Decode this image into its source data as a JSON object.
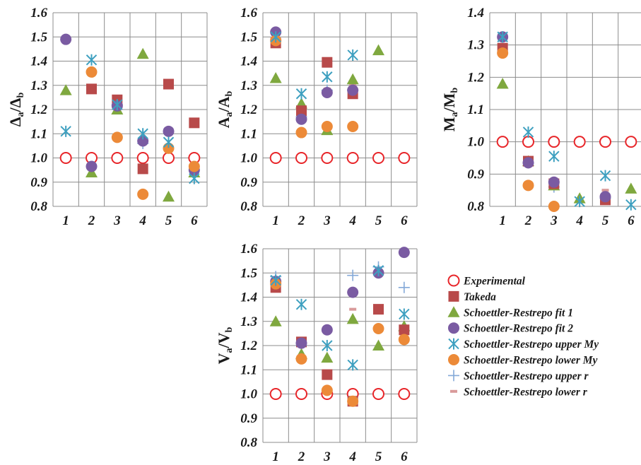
{
  "colors": {
    "Experimental": "#e8262a",
    "Takeda": "#b84a4a",
    "Schoettler-Restrepo fit 1": "#7fa83f",
    "Schoettler-Restrepo fit 2": "#7a5ba2",
    "Schoettler-Restrepo upper My": "#3ea0c0",
    "Schoettler-Restrepo lower My": "#ec8a38",
    "Schoettler-Restrepo upper r": "#84a9d8",
    "Schoettler-Restrepo lower r": "#d99a9a"
  },
  "markers": {
    "Experimental": "circle-open",
    "Takeda": "square",
    "Schoettler-Restrepo fit 1": "triangle",
    "Schoettler-Restrepo fit 2": "circle",
    "Schoettler-Restrepo upper My": "star",
    "Schoettler-Restrepo lower My": "circle",
    "Schoettler-Restrepo upper r": "plus",
    "Schoettler-Restrepo lower r": "dash"
  },
  "legend": {
    "placement": "right",
    "entries": [
      "Experimental",
      "Takeda",
      "Schoettler-Restrepo fit 1",
      "Schoettler-Restrepo fit 2",
      "Schoettler-Restrepo upper My",
      "Schoettler-Restrepo lower My",
      "Schoettler-Restrepo upper r",
      "Schoettler-Restrepo lower r"
    ]
  },
  "chart_data": [
    {
      "type": "scatter",
      "ylabel": {
        "main": "Δ",
        "sub": "a",
        "mid": "/Δ",
        "sub2": "b"
      },
      "ylim": [
        0.8,
        1.6
      ],
      "yticks": [
        "0.8",
        "0.9",
        "1.0",
        "1.1",
        "1.2",
        "1.3",
        "1.4",
        "1.5",
        "1.6"
      ],
      "xticks": [
        "1",
        "2",
        "3",
        "4",
        "5",
        "6"
      ],
      "grid": true,
      "series": [
        {
          "name": "Experimental",
          "values": [
            1.0,
            1.0,
            1.0,
            1.0,
            1.0,
            1.0
          ]
        },
        {
          "name": "Takeda",
          "values": [
            null,
            1.285,
            1.24,
            0.955,
            1.305,
            1.145
          ]
        },
        {
          "name": "Schoettler-Restrepo fit 1",
          "values": [
            1.28,
            0.94,
            1.2,
            1.43,
            0.84,
            0.94
          ]
        },
        {
          "name": "Schoettler-Restrepo fit 2",
          "values": [
            1.49,
            0.965,
            1.215,
            1.07,
            1.11,
            0.95
          ]
        },
        {
          "name": "Schoettler-Restrepo upper My",
          "values": [
            1.11,
            1.405,
            1.22,
            1.1,
            1.065,
            0.915
          ]
        },
        {
          "name": "Schoettler-Restrepo lower My",
          "values": [
            null,
            1.355,
            1.085,
            0.85,
            1.04,
            0.965
          ]
        },
        {
          "name": "Schoettler-Restrepo upper r",
          "values": [
            null,
            null,
            1.22,
            1.06,
            null,
            null
          ]
        },
        {
          "name": "Schoettler-Restrepo lower r",
          "values": [
            null,
            null,
            1.225,
            1.065,
            1.12,
            null
          ]
        }
      ]
    },
    {
      "type": "scatter",
      "ylabel": {
        "main": "A",
        "sub": "a",
        "mid": "/A",
        "sub2": "b"
      },
      "ylim": [
        0.8,
        1.6
      ],
      "yticks": [
        "0.8",
        "0.9",
        "1.0",
        "1.1",
        "1.2",
        "1.3",
        "1.4",
        "1.5",
        "1.6"
      ],
      "xticks": [
        "1",
        "2",
        "3",
        "4",
        "5",
        "6"
      ],
      "grid": true,
      "series": [
        {
          "name": "Experimental",
          "values": [
            1.0,
            1.0,
            1.0,
            1.0,
            1.0,
            1.0
          ]
        },
        {
          "name": "Takeda",
          "values": [
            1.475,
            1.195,
            1.395,
            1.265,
            null,
            null
          ]
        },
        {
          "name": "Schoettler-Restrepo fit 1",
          "values": [
            1.33,
            1.225,
            1.115,
            1.325,
            1.445,
            null
          ]
        },
        {
          "name": "Schoettler-Restrepo fit 2",
          "values": [
            1.52,
            1.16,
            1.27,
            1.28,
            null,
            null
          ]
        },
        {
          "name": "Schoettler-Restrepo upper My",
          "values": [
            1.5,
            1.265,
            1.335,
            1.425,
            null,
            null
          ]
        },
        {
          "name": "Schoettler-Restrepo lower My",
          "values": [
            1.485,
            1.105,
            1.13,
            1.13,
            null,
            null
          ]
        },
        {
          "name": "Schoettler-Restrepo upper r",
          "values": [
            null,
            1.17,
            1.28,
            1.28,
            null,
            null
          ]
        },
        {
          "name": "Schoettler-Restrepo lower r",
          "values": [
            null,
            null,
            1.285,
            1.3,
            null,
            null
          ]
        }
      ]
    },
    {
      "type": "scatter",
      "ylabel": {
        "main": "M",
        "sub": "a",
        "mid": "/M",
        "sub2": "b"
      },
      "ylim": [
        0.8,
        1.4
      ],
      "yticks": [
        "0.8",
        "0.9",
        "1.0",
        "1.1",
        "1.2",
        "1.3",
        "1.4"
      ],
      "xticks": [
        "1",
        "2",
        "3",
        "4",
        "5",
        "6"
      ],
      "grid": true,
      "series": [
        {
          "name": "Experimental",
          "values": [
            1.0,
            1.0,
            1.0,
            1.0,
            1.0,
            1.0
          ]
        },
        {
          "name": "Takeda",
          "values": [
            1.29,
            0.94,
            0.87,
            null,
            0.82,
            null
          ]
        },
        {
          "name": "Schoettler-Restrepo fit 1",
          "values": [
            1.18,
            0.94,
            0.865,
            0.825,
            null,
            0.855
          ]
        },
        {
          "name": "Schoettler-Restrepo fit 2",
          "values": [
            1.325,
            0.935,
            0.875,
            null,
            0.83,
            null
          ]
        },
        {
          "name": "Schoettler-Restrepo upper My",
          "values": [
            1.325,
            1.03,
            0.955,
            0.815,
            0.895,
            0.805
          ]
        },
        {
          "name": "Schoettler-Restrepo lower My",
          "values": [
            1.275,
            0.865,
            0.8,
            null,
            null,
            null
          ]
        },
        {
          "name": "Schoettler-Restrepo upper r",
          "values": [
            null,
            0.935,
            0.86,
            null,
            0.825,
            null
          ]
        },
        {
          "name": "Schoettler-Restrepo lower r",
          "values": [
            null,
            null,
            0.885,
            null,
            0.85,
            null
          ]
        }
      ]
    },
    {
      "type": "scatter",
      "ylabel": {
        "main": "V",
        "sub": "a",
        "mid": "/V",
        "sub2": "b"
      },
      "ylim": [
        0.8,
        1.6
      ],
      "yticks": [
        "0.8",
        "0.9",
        "1.0",
        "1.1",
        "1.2",
        "1.3",
        "1.4",
        "1.5",
        "1.6"
      ],
      "xticks": [
        "1",
        "2",
        "3",
        "4",
        "5",
        "6"
      ],
      "grid": true,
      "series": [
        {
          "name": "Experimental",
          "values": [
            1.0,
            1.0,
            1.0,
            1.0,
            1.0,
            1.0
          ]
        },
        {
          "name": "Takeda",
          "values": [
            1.44,
            1.215,
            1.08,
            0.97,
            1.35,
            1.265
          ]
        },
        {
          "name": "Schoettler-Restrepo fit 1",
          "values": [
            1.3,
            1.165,
            1.15,
            1.31,
            1.2,
            1.28
          ]
        },
        {
          "name": "Schoettler-Restrepo fit 2",
          "values": [
            1.465,
            1.21,
            1.265,
            1.42,
            1.5,
            1.585
          ]
        },
        {
          "name": "Schoettler-Restrepo upper My",
          "values": [
            1.47,
            1.37,
            1.2,
            1.12,
            1.51,
            1.33
          ]
        },
        {
          "name": "Schoettler-Restrepo lower My",
          "values": [
            1.455,
            1.145,
            1.015,
            0.97,
            1.27,
            1.225
          ]
        },
        {
          "name": "Schoettler-Restrepo upper r",
          "values": [
            1.485,
            1.2,
            null,
            1.49,
            1.525,
            1.44
          ]
        },
        {
          "name": "Schoettler-Restrepo lower r",
          "values": [
            null,
            null,
            null,
            1.35,
            null,
            null
          ]
        }
      ]
    }
  ]
}
